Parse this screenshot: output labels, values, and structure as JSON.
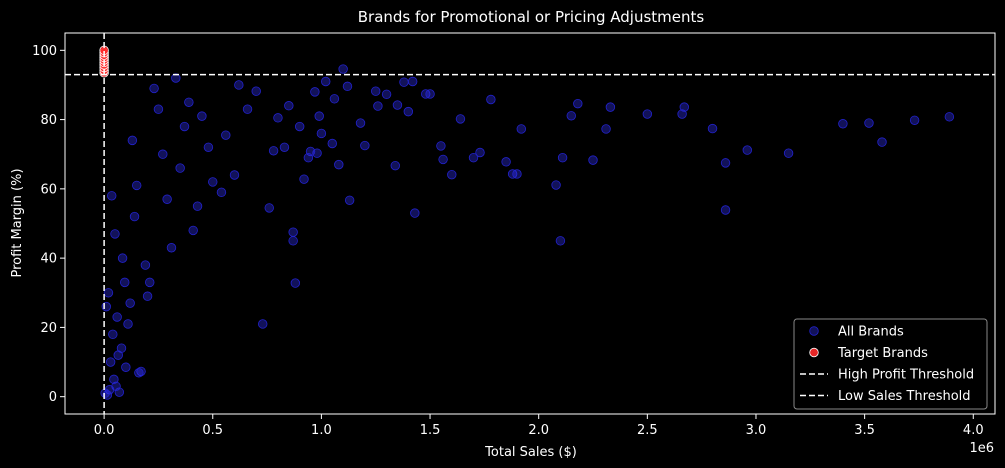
{
  "chart_data": {
    "type": "scatter",
    "title": "Brands for Promotional or Pricing Adjustments",
    "xlabel": "Total Sales ($)",
    "ylabel": "Profit Margin (%)",
    "x_offset_label": "1e6",
    "xlim": [
      -180000,
      4100000
    ],
    "ylim": [
      -5,
      105
    ],
    "x_ticks": [
      0,
      0.5,
      1.0,
      1.5,
      2.0,
      2.5,
      3.0,
      3.5,
      4.0
    ],
    "x_tick_labels": [
      "0.0",
      "0.5",
      "1.0",
      "1.5",
      "2.0",
      "2.5",
      "3.0",
      "3.5",
      "4.0"
    ],
    "y_ticks": [
      0,
      20,
      40,
      60,
      80,
      100
    ],
    "y_tick_labels": [
      "0",
      "20",
      "40",
      "60",
      "80",
      "100"
    ],
    "grid": false,
    "legend_position": "bottom-right",
    "thresholds": [
      {
        "name": "High Profit Threshold",
        "axis": "y",
        "value": 93,
        "color": "#ffffff",
        "style": "dashed"
      },
      {
        "name": "Low Sales Threshold",
        "axis": "x",
        "value": 0,
        "color": "#ffffff",
        "style": "dashed"
      }
    ],
    "series": [
      {
        "name": "All Brands",
        "color": "#3333ff",
        "points": [
          [
            1100000,
            94.6
          ],
          [
            1250000,
            88.2
          ],
          [
            1300000,
            87.3
          ],
          [
            1350000,
            84.2
          ],
          [
            1400000,
            82.3
          ],
          [
            1480000,
            87.4
          ],
          [
            1500000,
            87.4
          ],
          [
            1550000,
            72.4
          ],
          [
            1560000,
            68.5
          ],
          [
            1600000,
            64.1
          ],
          [
            1640000,
            80.2
          ],
          [
            1700000,
            69.0
          ],
          [
            1730000,
            70.5
          ],
          [
            1780000,
            85.8
          ],
          [
            1850000,
            67.8
          ],
          [
            1880000,
            64.3
          ],
          [
            1900000,
            64.3
          ],
          [
            1920000,
            77.3
          ],
          [
            2080000,
            61.1
          ],
          [
            2100000,
            45.0
          ],
          [
            2110000,
            69.0
          ],
          [
            2150000,
            81.1
          ],
          [
            2180000,
            84.6
          ],
          [
            2250000,
            68.3
          ],
          [
            2310000,
            77.3
          ],
          [
            2330000,
            83.6
          ],
          [
            2500000,
            81.6
          ],
          [
            2660000,
            81.6
          ],
          [
            2670000,
            83.6
          ],
          [
            2800000,
            77.4
          ],
          [
            2860000,
            67.5
          ],
          [
            2860000,
            53.9
          ],
          [
            2960000,
            71.2
          ],
          [
            3150000,
            70.3
          ],
          [
            3400000,
            78.8
          ],
          [
            3520000,
            79.0
          ],
          [
            3580000,
            73.5
          ],
          [
            3730000,
            79.8
          ],
          [
            3890000,
            80.8
          ],
          [
            1130000,
            56.7
          ],
          [
            1430000,
            53.0
          ],
          [
            1340000,
            66.7
          ],
          [
            1200000,
            72.5
          ],
          [
            1050000,
            73.1
          ],
          [
            980000,
            70.3
          ],
          [
            950000,
            70.8
          ],
          [
            1000000,
            76.0
          ],
          [
            1120000,
            89.6
          ],
          [
            1180000,
            79.0
          ],
          [
            1260000,
            83.9
          ],
          [
            1380000,
            90.8
          ],
          [
            1420000,
            91.0
          ],
          [
            900000,
            78.0
          ],
          [
            850000,
            84.0
          ],
          [
            870000,
            47.5
          ],
          [
            870000,
            45.0
          ],
          [
            880000,
            32.8
          ],
          [
            730000,
            21.0
          ],
          [
            780000,
            71.0
          ],
          [
            800000,
            80.5
          ],
          [
            830000,
            72.0
          ],
          [
            920000,
            62.8
          ],
          [
            940000,
            69.0
          ],
          [
            970000,
            88.0
          ],
          [
            990000,
            81.0
          ],
          [
            1020000,
            91.0
          ],
          [
            1060000,
            86.0
          ],
          [
            1080000,
            67.0
          ],
          [
            760000,
            54.5
          ],
          [
            700000,
            88.2
          ],
          [
            660000,
            83.0
          ],
          [
            620000,
            90.0
          ],
          [
            600000,
            64.0
          ],
          [
            560000,
            75.5
          ],
          [
            540000,
            59.0
          ],
          [
            500000,
            62.0
          ],
          [
            480000,
            72.0
          ],
          [
            450000,
            81.0
          ],
          [
            430000,
            55.0
          ],
          [
            410000,
            48.0
          ],
          [
            390000,
            85.0
          ],
          [
            370000,
            78.0
          ],
          [
            350000,
            66.0
          ],
          [
            330000,
            92.0
          ],
          [
            310000,
            43.0
          ],
          [
            290000,
            57.0
          ],
          [
            270000,
            70.0
          ],
          [
            250000,
            83.0
          ],
          [
            230000,
            89.0
          ],
          [
            210000,
            33.0
          ],
          [
            200000,
            29.0
          ],
          [
            190000,
            38.0
          ],
          [
            170000,
            7.3
          ],
          [
            160000,
            6.9
          ],
          [
            150000,
            61.0
          ],
          [
            140000,
            52.0
          ],
          [
            130000,
            74.0
          ],
          [
            120000,
            27.0
          ],
          [
            110000,
            21.0
          ],
          [
            100000,
            8.5
          ],
          [
            95000,
            33.0
          ],
          [
            85000,
            40.0
          ],
          [
            80000,
            14.0
          ],
          [
            70000,
            1.3
          ],
          [
            65000,
            12.0
          ],
          [
            60000,
            23.0
          ],
          [
            55000,
            3.0
          ],
          [
            50000,
            47.0
          ],
          [
            45000,
            5.0
          ],
          [
            40000,
            18.0
          ],
          [
            35000,
            58.0
          ],
          [
            30000,
            10.0
          ],
          [
            25000,
            2.0
          ],
          [
            20000,
            30.0
          ],
          [
            15000,
            0.5
          ],
          [
            10000,
            26.0
          ],
          [
            5000,
            1.0
          ]
        ]
      },
      {
        "name": "Target Brands",
        "color": "#ff2a2a",
        "points": [
          [
            0,
            93.5
          ],
          [
            0,
            94.2
          ],
          [
            0,
            95.0
          ],
          [
            0,
            95.8
          ],
          [
            0,
            96.5
          ],
          [
            0,
            97.2
          ],
          [
            0,
            97.9
          ],
          [
            0,
            98.6
          ],
          [
            0,
            99.3
          ],
          [
            0,
            100.0
          ]
        ]
      }
    ],
    "legend": [
      {
        "label": "All Brands",
        "marker": "circle",
        "color": "#3333ff"
      },
      {
        "label": "Target Brands",
        "marker": "circle",
        "color": "#ff2a2a"
      },
      {
        "label": "High Profit Threshold",
        "marker": "dash",
        "color": "#ffffff"
      },
      {
        "label": "Low Sales Threshold",
        "marker": "dash",
        "color": "#ffffff"
      }
    ]
  }
}
